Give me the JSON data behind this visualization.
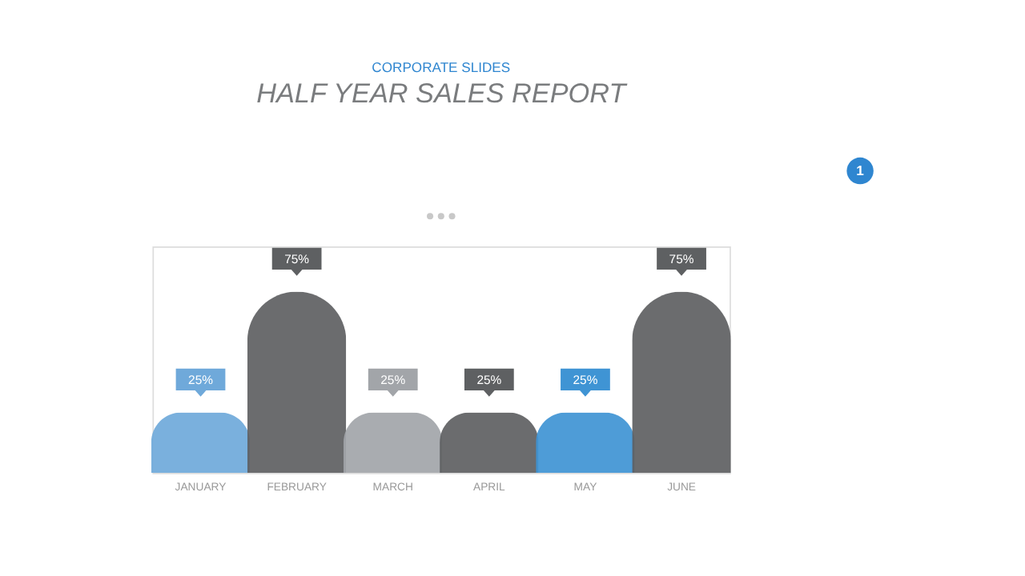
{
  "chart_data": {
    "type": "bar",
    "title": "HALF YEAR SALES REPORT",
    "subtitle": "CORPORATE SLIDES",
    "categories": [
      "JANUARY",
      "FEBRUARY",
      "MARCH",
      "APRIL",
      "MAY",
      "JUNE"
    ],
    "values": [
      25,
      75,
      25,
      25,
      25,
      75
    ],
    "colors": [
      "#6fa9da",
      "#5e6062",
      "#a2a5a9",
      "#5e6062",
      "#3f94d4",
      "#5e6062"
    ],
    "value_labels": [
      "25%",
      "75%",
      "25%",
      "25%",
      "25%",
      "75%"
    ],
    "annotations": [
      "1"
    ]
  }
}
